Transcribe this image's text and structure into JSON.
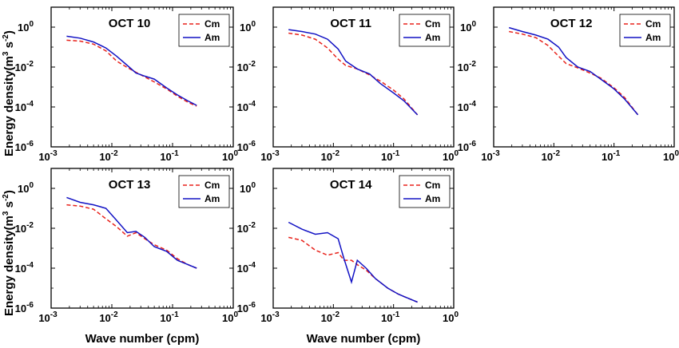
{
  "figure": {
    "ylabel_main": "Energy density(m",
    "ylabel_sup1": "3",
    "ylabel_mid": " s",
    "ylabel_sup2": "-2",
    "ylabel_end": ")",
    "xlabel": "Wave number (cpm)",
    "tick_base": "10",
    "x_tick_exps": [
      "-3",
      "-2",
      "-1",
      "0"
    ],
    "y_tick_exps": [
      "-6",
      "-4",
      "-2",
      "0"
    ]
  },
  "chart_data": [
    {
      "type": "line",
      "title": "OCT 10",
      "xscale": "log",
      "yscale": "log",
      "xlim": [
        0.001,
        1
      ],
      "ylim": [
        1e-06,
        10
      ],
      "xlabel": "",
      "ylabel": "Energy density(m3 s-2)",
      "legend": "top-right",
      "x": [
        0.0018,
        0.003,
        0.005,
        0.008,
        0.012,
        0.018,
        0.025,
        0.035,
        0.05,
        0.08,
        0.12,
        0.18,
        0.25
      ],
      "series": [
        {
          "name": "Cm",
          "color": "#e8221b",
          "dash": true,
          "values": [
            0.22,
            0.2,
            0.14,
            0.065,
            0.02,
            0.0095,
            0.0055,
            0.0032,
            0.0018,
            0.0008,
            0.00035,
            0.00017,
            0.00011
          ]
        },
        {
          "name": "Am",
          "color": "#1212c4",
          "dash": false,
          "values": [
            0.35,
            0.28,
            0.18,
            0.09,
            0.035,
            0.012,
            0.005,
            0.0035,
            0.0025,
            0.0009,
            0.0004,
            0.0002,
            0.00012
          ]
        }
      ]
    },
    {
      "type": "line",
      "title": "OCT 11",
      "xscale": "log",
      "yscale": "log",
      "xlim": [
        0.001,
        1
      ],
      "ylim": [
        1e-06,
        10
      ],
      "xlabel": "",
      "ylabel": "",
      "legend": "top-right",
      "x": [
        0.0018,
        0.003,
        0.005,
        0.008,
        0.012,
        0.016,
        0.025,
        0.04,
        0.06,
        0.1,
        0.15,
        0.25
      ],
      "series": [
        {
          "name": "Cm",
          "color": "#e8221b",
          "dash": true,
          "values": [
            0.5,
            0.4,
            0.25,
            0.09,
            0.025,
            0.012,
            0.008,
            0.004,
            0.002,
            0.0007,
            0.00025,
            4e-05
          ]
        },
        {
          "name": "Am",
          "color": "#1212c4",
          "dash": false,
          "values": [
            0.75,
            0.6,
            0.45,
            0.25,
            0.08,
            0.02,
            0.008,
            0.0045,
            0.0015,
            0.0005,
            0.0002,
            4e-05
          ]
        }
      ]
    },
    {
      "type": "line",
      "title": "OCT 12",
      "xscale": "log",
      "yscale": "log",
      "xlim": [
        0.001,
        1
      ],
      "ylim": [
        1e-06,
        10
      ],
      "xlabel": "",
      "ylabel": "",
      "legend": "top-right",
      "x": [
        0.0018,
        0.003,
        0.005,
        0.008,
        0.012,
        0.016,
        0.025,
        0.04,
        0.06,
        0.1,
        0.15,
        0.25
      ],
      "series": [
        {
          "name": "Cm",
          "color": "#e8221b",
          "dash": true,
          "values": [
            0.6,
            0.45,
            0.3,
            0.12,
            0.035,
            0.015,
            0.009,
            0.005,
            0.0028,
            0.0009,
            0.0003,
            4e-05
          ]
        },
        {
          "name": "Am",
          "color": "#1212c4",
          "dash": false,
          "values": [
            0.95,
            0.6,
            0.4,
            0.25,
            0.1,
            0.03,
            0.01,
            0.006,
            0.0025,
            0.0008,
            0.00025,
            4e-05
          ]
        }
      ]
    },
    {
      "type": "line",
      "title": "OCT 13",
      "xscale": "log",
      "yscale": "log",
      "xlim": [
        0.001,
        1
      ],
      "ylim": [
        1e-06,
        10
      ],
      "xlabel": "Wave number (cpm)",
      "ylabel": "Energy density(m3 s-2)",
      "legend": "top-right",
      "x": [
        0.0018,
        0.003,
        0.005,
        0.008,
        0.012,
        0.018,
        0.025,
        0.035,
        0.05,
        0.08,
        0.12,
        0.18,
        0.25
      ],
      "series": [
        {
          "name": "Cm",
          "color": "#e8221b",
          "dash": true,
          "values": [
            0.15,
            0.13,
            0.09,
            0.03,
            0.012,
            0.004,
            0.006,
            0.003,
            0.0015,
            0.0008,
            0.0003,
            0.00015,
            0.0001
          ]
        },
        {
          "name": "Am",
          "color": "#1212c4",
          "dash": false,
          "values": [
            0.35,
            0.2,
            0.15,
            0.1,
            0.025,
            0.006,
            0.007,
            0.0035,
            0.0012,
            0.0007,
            0.00025,
            0.00015,
            0.0001
          ]
        }
      ]
    },
    {
      "type": "line",
      "title": "OCT 14",
      "xscale": "log",
      "yscale": "log",
      "xlim": [
        0.001,
        1
      ],
      "ylim": [
        1e-06,
        10
      ],
      "xlabel": "Wave number (cpm)",
      "ylabel": "",
      "legend": "top-right",
      "x": [
        0.0018,
        0.003,
        0.005,
        0.008,
        0.012,
        0.015,
        0.02,
        0.025,
        0.035,
        0.05,
        0.08,
        0.12,
        0.18,
        0.25
      ],
      "series": [
        {
          "name": "Cm",
          "color": "#e8221b",
          "dash": true,
          "values": [
            0.0035,
            0.0025,
            0.0008,
            0.00045,
            0.0006,
            0.00025,
            0.00025,
            0.00015,
            8e-05,
            3e-05,
            1e-05,
            5e-06,
            3e-06,
            2e-06
          ]
        },
        {
          "name": "Am",
          "color": "#1212c4",
          "dash": false,
          "values": [
            0.02,
            0.009,
            0.005,
            0.006,
            0.003,
            0.0003,
            2e-05,
            0.00025,
            0.0001,
            3e-05,
            1e-05,
            5e-06,
            3e-06,
            2e-06
          ]
        }
      ]
    }
  ]
}
